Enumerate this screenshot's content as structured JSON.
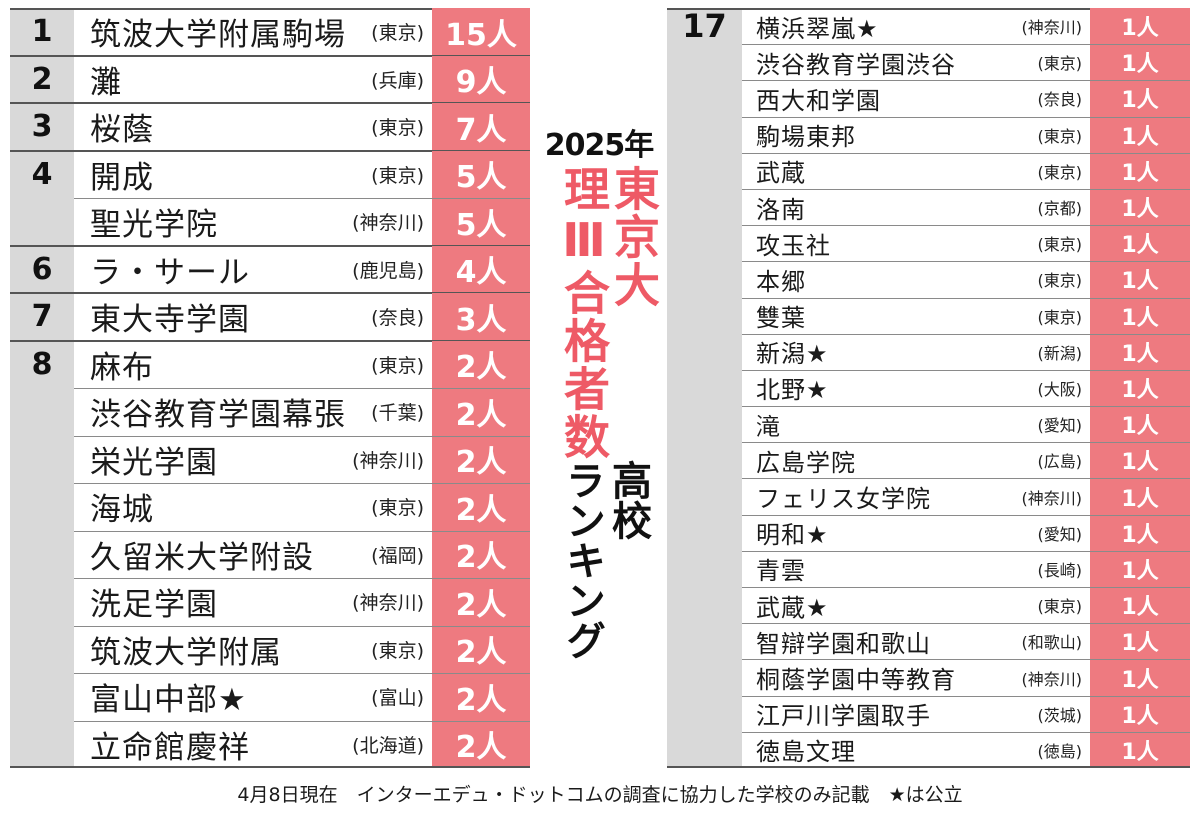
{
  "headline": {
    "year": "2025年",
    "title_line1": "東京大",
    "title_line2": "理Ⅲ合格者数",
    "subtitle_line1": "高校",
    "subtitle_line2": "ランキング"
  },
  "footnote": "4月8日現在　インターエデュ・ドットコムの調査に協力した学校のみ記載　★は公立",
  "chart_data": {
    "type": "table",
    "columns": [
      "rank",
      "school",
      "prefecture",
      "count"
    ],
    "left": [
      {
        "rank": "1",
        "rows": [
          {
            "school": "筑波大学附属駒場",
            "pref": "(東京)",
            "count": "15人"
          }
        ]
      },
      {
        "rank": "2",
        "rows": [
          {
            "school": "灘",
            "pref": "(兵庫)",
            "count": "9人"
          }
        ]
      },
      {
        "rank": "3",
        "rows": [
          {
            "school": "桜蔭",
            "pref": "(東京)",
            "count": "7人"
          }
        ]
      },
      {
        "rank": "4",
        "rows": [
          {
            "school": "開成",
            "pref": "(東京)",
            "count": "5人"
          },
          {
            "school": "聖光学院",
            "pref": "(神奈川)",
            "count": "5人"
          }
        ]
      },
      {
        "rank": "6",
        "rows": [
          {
            "school": "ラ・サール",
            "pref": "(鹿児島)",
            "count": "4人"
          }
        ]
      },
      {
        "rank": "7",
        "rows": [
          {
            "school": "東大寺学園",
            "pref": "(奈良)",
            "count": "3人"
          }
        ]
      },
      {
        "rank": "8",
        "rows": [
          {
            "school": "麻布",
            "pref": "(東京)",
            "count": "2人"
          },
          {
            "school": "渋谷教育学園幕張",
            "pref": "(千葉)",
            "count": "2人"
          },
          {
            "school": "栄光学園",
            "pref": "(神奈川)",
            "count": "2人"
          },
          {
            "school": "海城",
            "pref": "(東京)",
            "count": "2人"
          },
          {
            "school": "久留米大学附設",
            "pref": "(福岡)",
            "count": "2人"
          },
          {
            "school": "洗足学園",
            "pref": "(神奈川)",
            "count": "2人"
          },
          {
            "school": "筑波大学附属",
            "pref": "(東京)",
            "count": "2人"
          },
          {
            "school": "富山中部★",
            "pref": "(富山)",
            "count": "2人"
          },
          {
            "school": "立命館慶祥",
            "pref": "(北海道)",
            "count": "2人"
          }
        ]
      }
    ],
    "right": [
      {
        "rank": "17",
        "rows": [
          {
            "school": "横浜翠嵐★",
            "pref": "(神奈川)",
            "count": "1人"
          },
          {
            "school": "渋谷教育学園渋谷",
            "pref": "(東京)",
            "count": "1人"
          },
          {
            "school": "西大和学園",
            "pref": "(奈良)",
            "count": "1人"
          },
          {
            "school": "駒場東邦",
            "pref": "(東京)",
            "count": "1人"
          },
          {
            "school": "武蔵",
            "pref": "(東京)",
            "count": "1人"
          },
          {
            "school": "洛南",
            "pref": "(京都)",
            "count": "1人"
          },
          {
            "school": "攻玉社",
            "pref": "(東京)",
            "count": "1人"
          },
          {
            "school": "本郷",
            "pref": "(東京)",
            "count": "1人"
          },
          {
            "school": "雙葉",
            "pref": "(東京)",
            "count": "1人"
          },
          {
            "school": "新潟★",
            "pref": "(新潟)",
            "count": "1人"
          },
          {
            "school": "北野★",
            "pref": "(大阪)",
            "count": "1人"
          },
          {
            "school": "滝",
            "pref": "(愛知)",
            "count": "1人"
          },
          {
            "school": "広島学院",
            "pref": "(広島)",
            "count": "1人"
          },
          {
            "school": "フェリス女学院",
            "pref": "(神奈川)",
            "count": "1人"
          },
          {
            "school": "明和★",
            "pref": "(愛知)",
            "count": "1人"
          },
          {
            "school": "青雲",
            "pref": "(長崎)",
            "count": "1人"
          },
          {
            "school": "武蔵★",
            "pref": "(東京)",
            "count": "1人"
          },
          {
            "school": "智辯学園和歌山",
            "pref": "(和歌山)",
            "count": "1人"
          },
          {
            "school": "桐蔭学園中等教育",
            "pref": "(神奈川)",
            "count": "1人"
          },
          {
            "school": "江戸川学園取手",
            "pref": "(茨城)",
            "count": "1人"
          },
          {
            "school": "徳島文理",
            "pref": "(徳島)",
            "count": "1人"
          }
        ]
      }
    ]
  }
}
